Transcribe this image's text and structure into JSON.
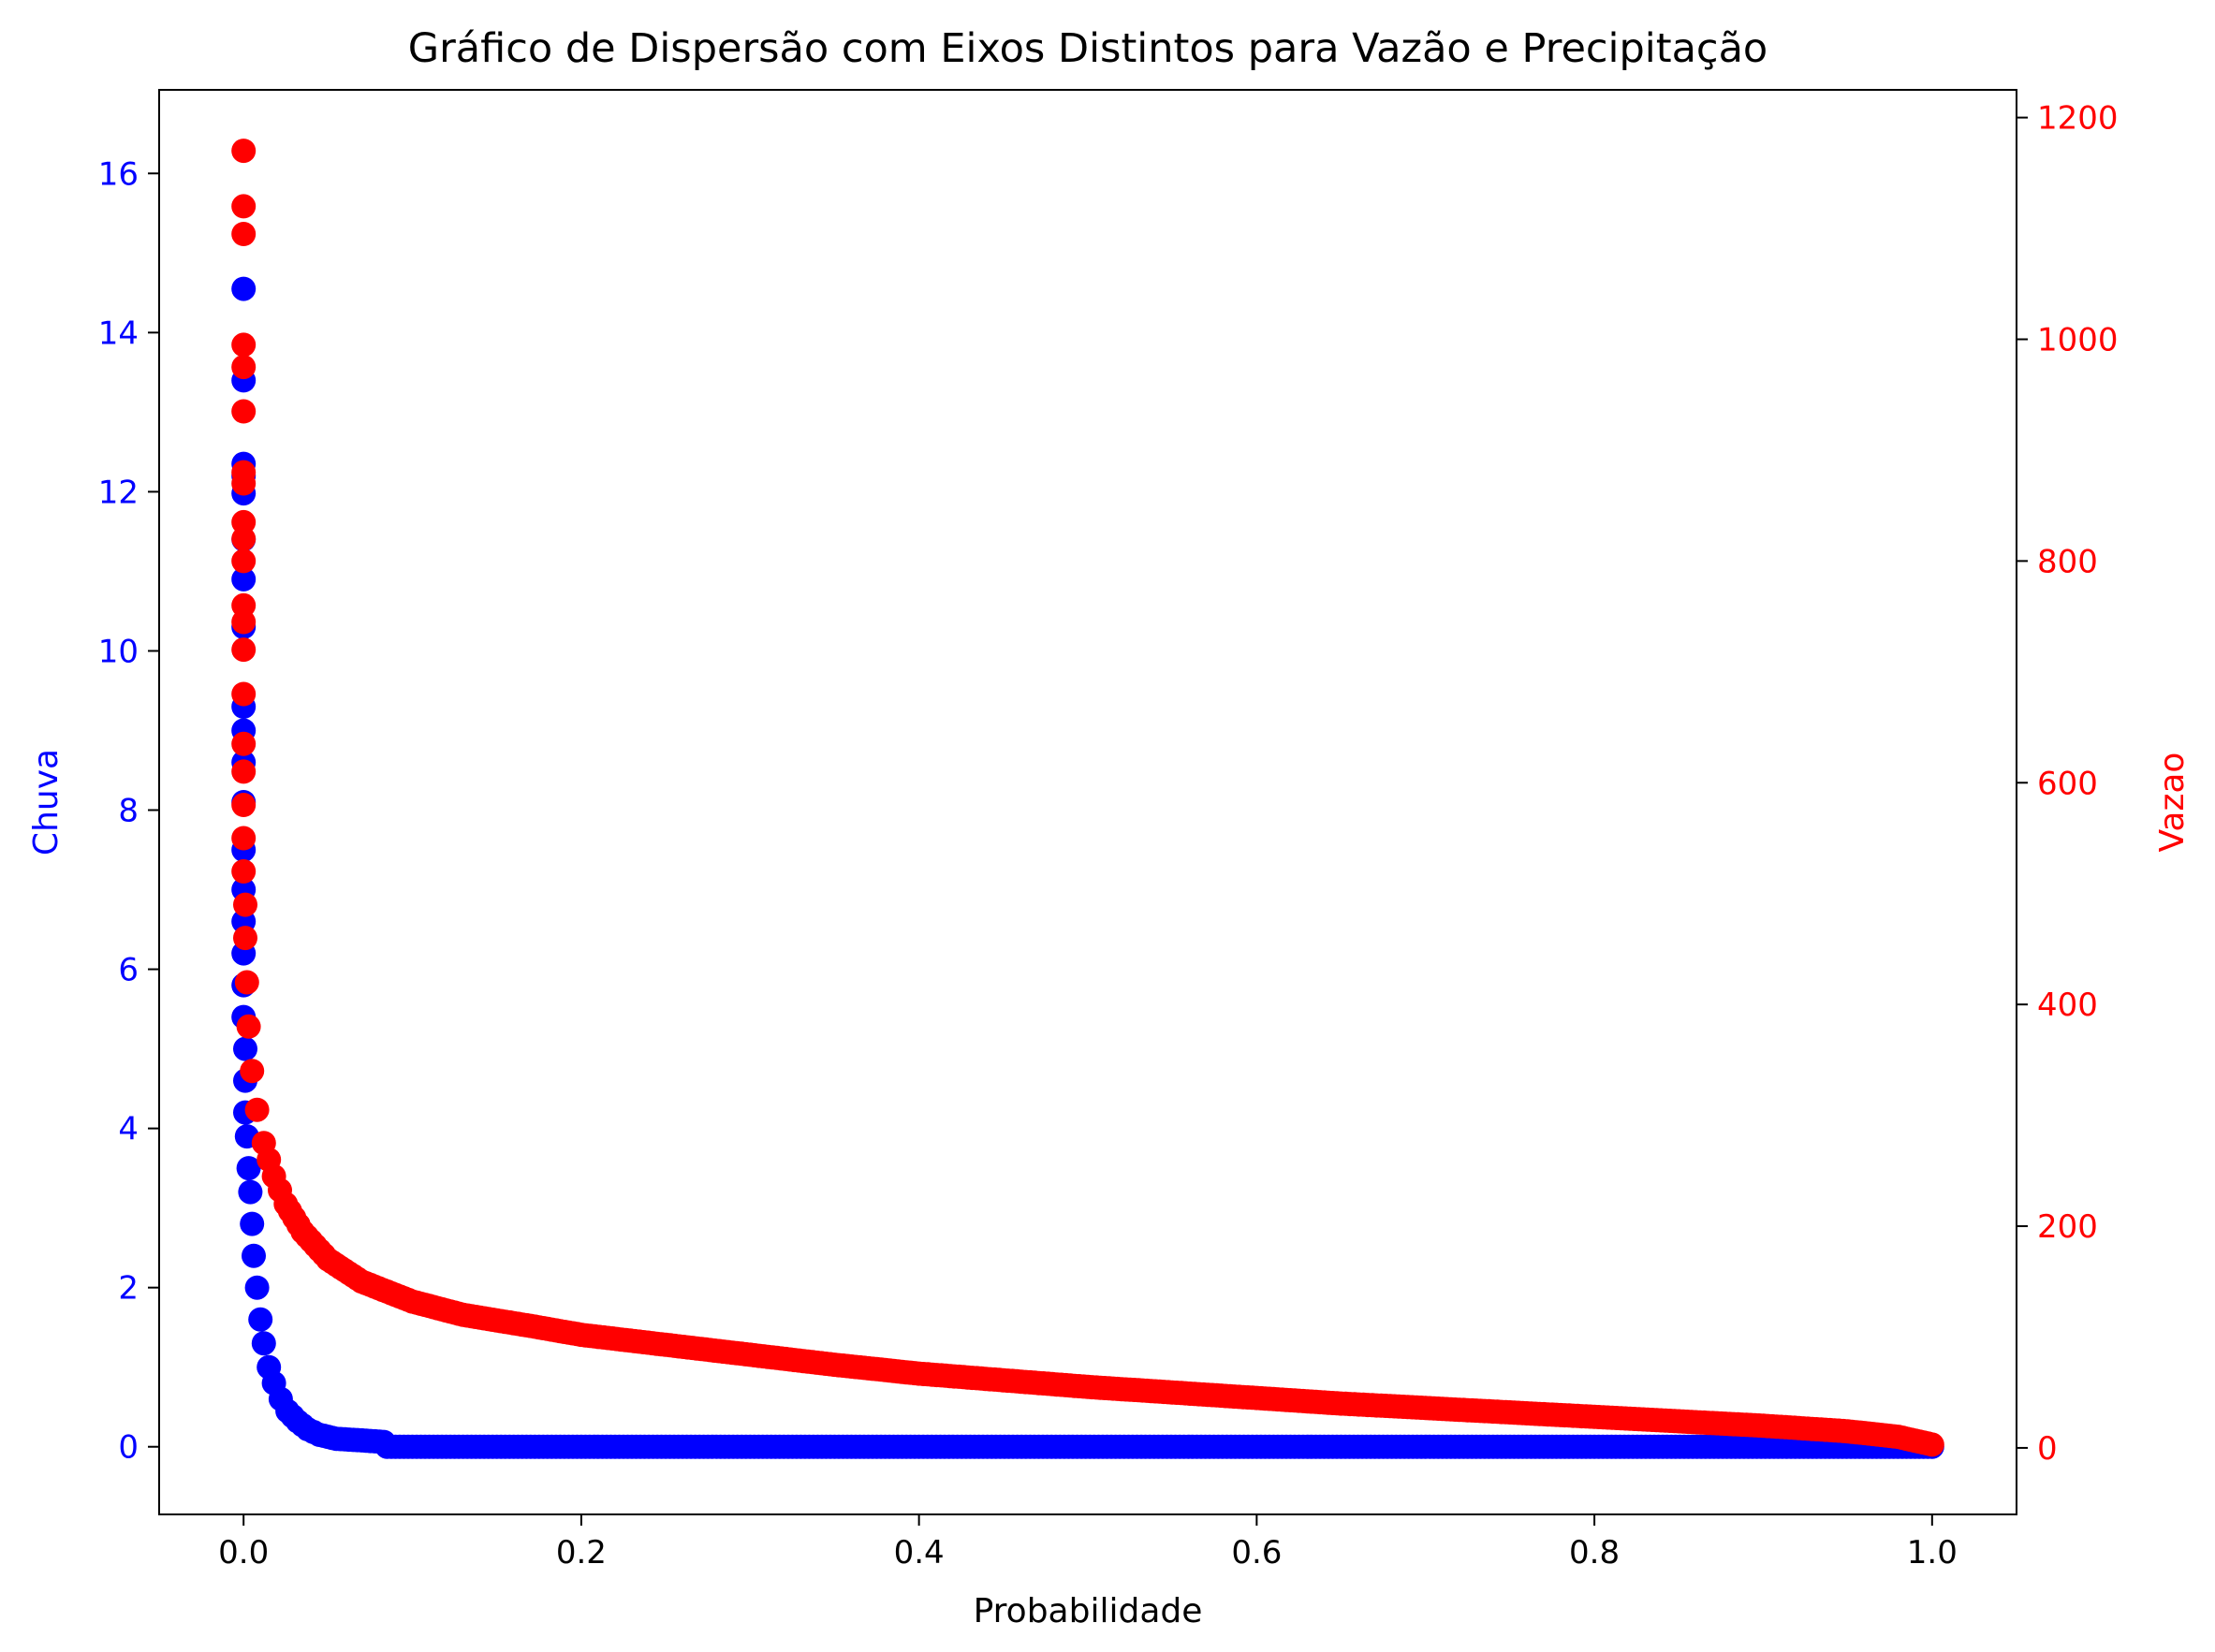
{
  "chart_data": {
    "type": "scatter",
    "title": "Gráfico de Dispersão com Eixos Distintos para Vazão e Precipitação",
    "xlabel": "Probabilidade",
    "ylabel_left": "Chuva",
    "ylabel_right": "Vazao",
    "xlim": [
      -0.05,
      1.05
    ],
    "ylim_left": [
      -0.85,
      17.05
    ],
    "ylim_right": [
      -60,
      1225
    ],
    "x_ticks": [
      0.0,
      0.2,
      0.4,
      0.6,
      0.8,
      1.0
    ],
    "x_tick_labels": [
      "0.0",
      "0.2",
      "0.4",
      "0.6",
      "0.8",
      "1.0"
    ],
    "y_left_ticks": [
      0,
      2,
      4,
      6,
      8,
      10,
      12,
      14,
      16
    ],
    "y_left_tick_labels": [
      "0",
      "2",
      "4",
      "6",
      "8",
      "10",
      "12",
      "14",
      "16"
    ],
    "y_right_ticks": [
      0,
      200,
      400,
      600,
      800,
      1000,
      1200
    ],
    "y_right_tick_labels": [
      "0",
      "200",
      "400",
      "600",
      "800",
      "1000",
      "1200"
    ],
    "grid": false,
    "colors": {
      "chuva": "#0000ff",
      "vazao": "#ff0000",
      "axes": "#000000"
    },
    "series": [
      {
        "axis": "left",
        "color": "#0000ff",
        "points": [
          [
            0.0,
            14.55
          ],
          [
            0.0,
            13.4
          ],
          [
            0.0,
            12.35
          ],
          [
            0.0,
            12.2
          ],
          [
            0.0,
            11.98
          ],
          [
            0.0,
            11.4
          ],
          [
            0.0,
            10.9
          ],
          [
            0.0,
            10.3
          ],
          [
            0.0,
            9.3
          ],
          [
            0.0,
            9.0
          ],
          [
            0.0,
            8.6
          ],
          [
            0.0,
            8.1
          ],
          [
            0.0,
            7.5
          ],
          [
            0.0,
            7.0
          ],
          [
            0.0,
            6.6
          ],
          [
            0.0,
            6.2
          ],
          [
            0.0,
            5.8
          ],
          [
            0.0,
            5.4
          ],
          [
            0.001,
            5.0
          ],
          [
            0.001,
            4.6
          ],
          [
            0.001,
            4.2
          ],
          [
            0.002,
            3.9
          ],
          [
            0.003,
            3.5
          ],
          [
            0.004,
            3.2
          ],
          [
            0.005,
            2.8
          ],
          [
            0.006,
            2.4
          ],
          [
            0.008,
            2.0
          ],
          [
            0.01,
            1.6
          ],
          [
            0.012,
            1.3
          ],
          [
            0.015,
            1.0
          ],
          [
            0.018,
            0.8
          ],
          [
            0.022,
            0.6
          ],
          [
            0.026,
            0.45
          ],
          [
            0.032,
            0.32
          ],
          [
            0.038,
            0.22
          ],
          [
            0.045,
            0.15
          ],
          [
            0.055,
            0.1
          ],
          [
            0.07,
            0.08
          ],
          [
            0.083,
            0.06
          ],
          [
            0.085,
            0.0
          ],
          [
            0.2,
            0.0
          ],
          [
            0.4,
            0.0
          ],
          [
            0.6,
            0.0
          ],
          [
            0.8,
            0.0
          ],
          [
            1.0,
            0.0
          ]
        ]
      },
      {
        "axis": "right",
        "color": "#ff0000",
        "points": [
          [
            0.0,
            1170
          ],
          [
            0.0,
            1120
          ],
          [
            0.0,
            1095
          ],
          [
            0.0,
            995
          ],
          [
            0.0,
            975
          ],
          [
            0.0,
            935
          ],
          [
            0.0,
            880
          ],
          [
            0.0,
            870
          ],
          [
            0.0,
            835
          ],
          [
            0.0,
            820
          ],
          [
            0.0,
            800
          ],
          [
            0.0,
            760
          ],
          [
            0.0,
            745
          ],
          [
            0.0,
            720
          ],
          [
            0.0,
            680
          ],
          [
            0.0,
            635
          ],
          [
            0.0,
            610
          ],
          [
            0.0,
            580
          ],
          [
            0.0,
            550
          ],
          [
            0.0,
            520
          ],
          [
            0.001,
            490
          ],
          [
            0.001,
            460
          ],
          [
            0.002,
            420
          ],
          [
            0.003,
            380
          ],
          [
            0.005,
            340
          ],
          [
            0.008,
            305
          ],
          [
            0.012,
            275
          ],
          [
            0.018,
            245
          ],
          [
            0.025,
            220
          ],
          [
            0.035,
            195
          ],
          [
            0.05,
            170
          ],
          [
            0.07,
            150
          ],
          [
            0.1,
            132
          ],
          [
            0.13,
            120
          ],
          [
            0.17,
            110
          ],
          [
            0.2,
            102
          ],
          [
            0.25,
            93
          ],
          [
            0.3,
            84
          ],
          [
            0.35,
            75
          ],
          [
            0.4,
            67
          ],
          [
            0.45,
            61
          ],
          [
            0.5,
            55
          ],
          [
            0.55,
            50
          ],
          [
            0.6,
            45
          ],
          [
            0.65,
            40
          ],
          [
            0.7,
            36
          ],
          [
            0.75,
            32
          ],
          [
            0.8,
            28
          ],
          [
            0.85,
            24
          ],
          [
            0.9,
            20
          ],
          [
            0.95,
            15
          ],
          [
            0.98,
            10
          ],
          [
            1.0,
            3
          ]
        ]
      }
    ]
  }
}
